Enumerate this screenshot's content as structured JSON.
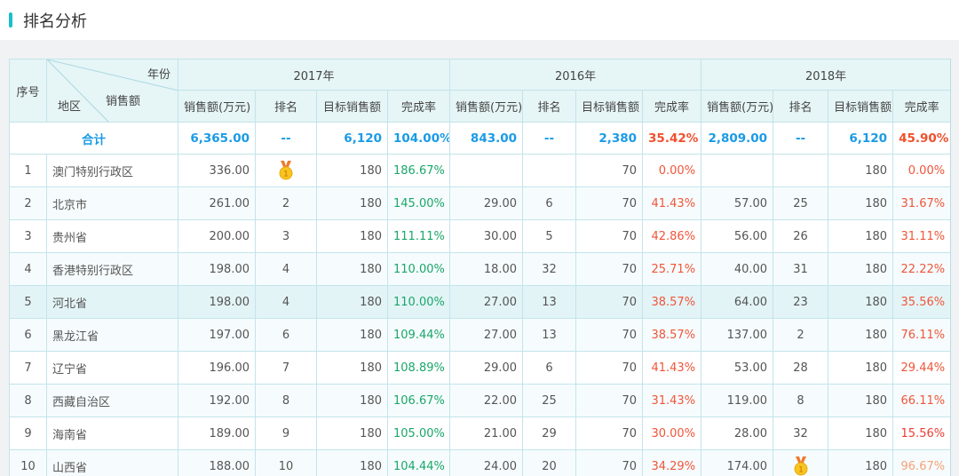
{
  "page": {
    "title": "排名分析",
    "accent": "#1bbfc9"
  },
  "header": {
    "index": "序号",
    "year_label": "年份",
    "sales_label": "销售额",
    "region_label": "地区",
    "years": [
      "2017年",
      "2016年",
      "2018年"
    ],
    "sub": [
      "销售额(万元)",
      "排名",
      "目标销售额",
      "完成率"
    ]
  },
  "total": {
    "label": "合计",
    "values": [
      [
        "6,365.00",
        "--",
        "6,120",
        "104.00%"
      ],
      [
        "843.00",
        "--",
        "2,380",
        "35.42%"
      ],
      [
        "2,809.00",
        "--",
        "6,120",
        "45.90%"
      ]
    ]
  },
  "colors": {
    "good": "#1aa66a",
    "bad": "#f0553a",
    "low": "#ee3f35",
    "mid": "#f5a27a",
    "total": "#1a9be6"
  },
  "rows": [
    {
      "no": "1",
      "region": "澳门特别行政区",
      "y": [
        [
          "336.00",
          "medal-icon",
          "180",
          "186.67%"
        ],
        [
          "",
          "",
          "70",
          "0.00%"
        ],
        [
          "",
          "",
          "180",
          "0.00%"
        ]
      ]
    },
    {
      "no": "2",
      "region": "北京市",
      "y": [
        [
          "261.00",
          "2",
          "180",
          "145.00%"
        ],
        [
          "29.00",
          "6",
          "70",
          "41.43%"
        ],
        [
          "57.00",
          "25",
          "180",
          "31.67%"
        ]
      ]
    },
    {
      "no": "3",
      "region": "贵州省",
      "y": [
        [
          "200.00",
          "3",
          "180",
          "111.11%"
        ],
        [
          "30.00",
          "5",
          "70",
          "42.86%"
        ],
        [
          "56.00",
          "26",
          "180",
          "31.11%"
        ]
      ]
    },
    {
      "no": "4",
      "region": "香港特别行政区",
      "y": [
        [
          "198.00",
          "4",
          "180",
          "110.00%"
        ],
        [
          "18.00",
          "32",
          "70",
          "25.71%"
        ],
        [
          "40.00",
          "31",
          "180",
          "22.22%"
        ]
      ]
    },
    {
      "no": "5",
      "region": "河北省",
      "y": [
        [
          "198.00",
          "4",
          "180",
          "110.00%"
        ],
        [
          "27.00",
          "13",
          "70",
          "38.57%"
        ],
        [
          "64.00",
          "23",
          "180",
          "35.56%"
        ]
      ]
    },
    {
      "no": "6",
      "region": "黑龙江省",
      "y": [
        [
          "197.00",
          "6",
          "180",
          "109.44%"
        ],
        [
          "27.00",
          "13",
          "70",
          "38.57%"
        ],
        [
          "137.00",
          "2",
          "180",
          "76.11%"
        ]
      ]
    },
    {
      "no": "7",
      "region": "辽宁省",
      "y": [
        [
          "196.00",
          "7",
          "180",
          "108.89%"
        ],
        [
          "29.00",
          "6",
          "70",
          "41.43%"
        ],
        [
          "53.00",
          "28",
          "180",
          "29.44%"
        ]
      ]
    },
    {
      "no": "8",
      "region": "西藏自治区",
      "y": [
        [
          "192.00",
          "8",
          "180",
          "106.67%"
        ],
        [
          "22.00",
          "25",
          "70",
          "31.43%"
        ],
        [
          "119.00",
          "8",
          "180",
          "66.11%"
        ]
      ]
    },
    {
      "no": "9",
      "region": "海南省",
      "y": [
        [
          "189.00",
          "9",
          "180",
          "105.00%"
        ],
        [
          "21.00",
          "29",
          "70",
          "30.00%"
        ],
        [
          "28.00",
          "32",
          "180",
          "15.56%"
        ]
      ]
    },
    {
      "no": "10",
      "region": "山西省",
      "y": [
        [
          "188.00",
          "10",
          "180",
          "104.44%"
        ],
        [
          "24.00",
          "20",
          "70",
          "34.29%"
        ],
        [
          "174.00",
          "medal-icon",
          "180",
          "96.67%"
        ]
      ]
    }
  ]
}
